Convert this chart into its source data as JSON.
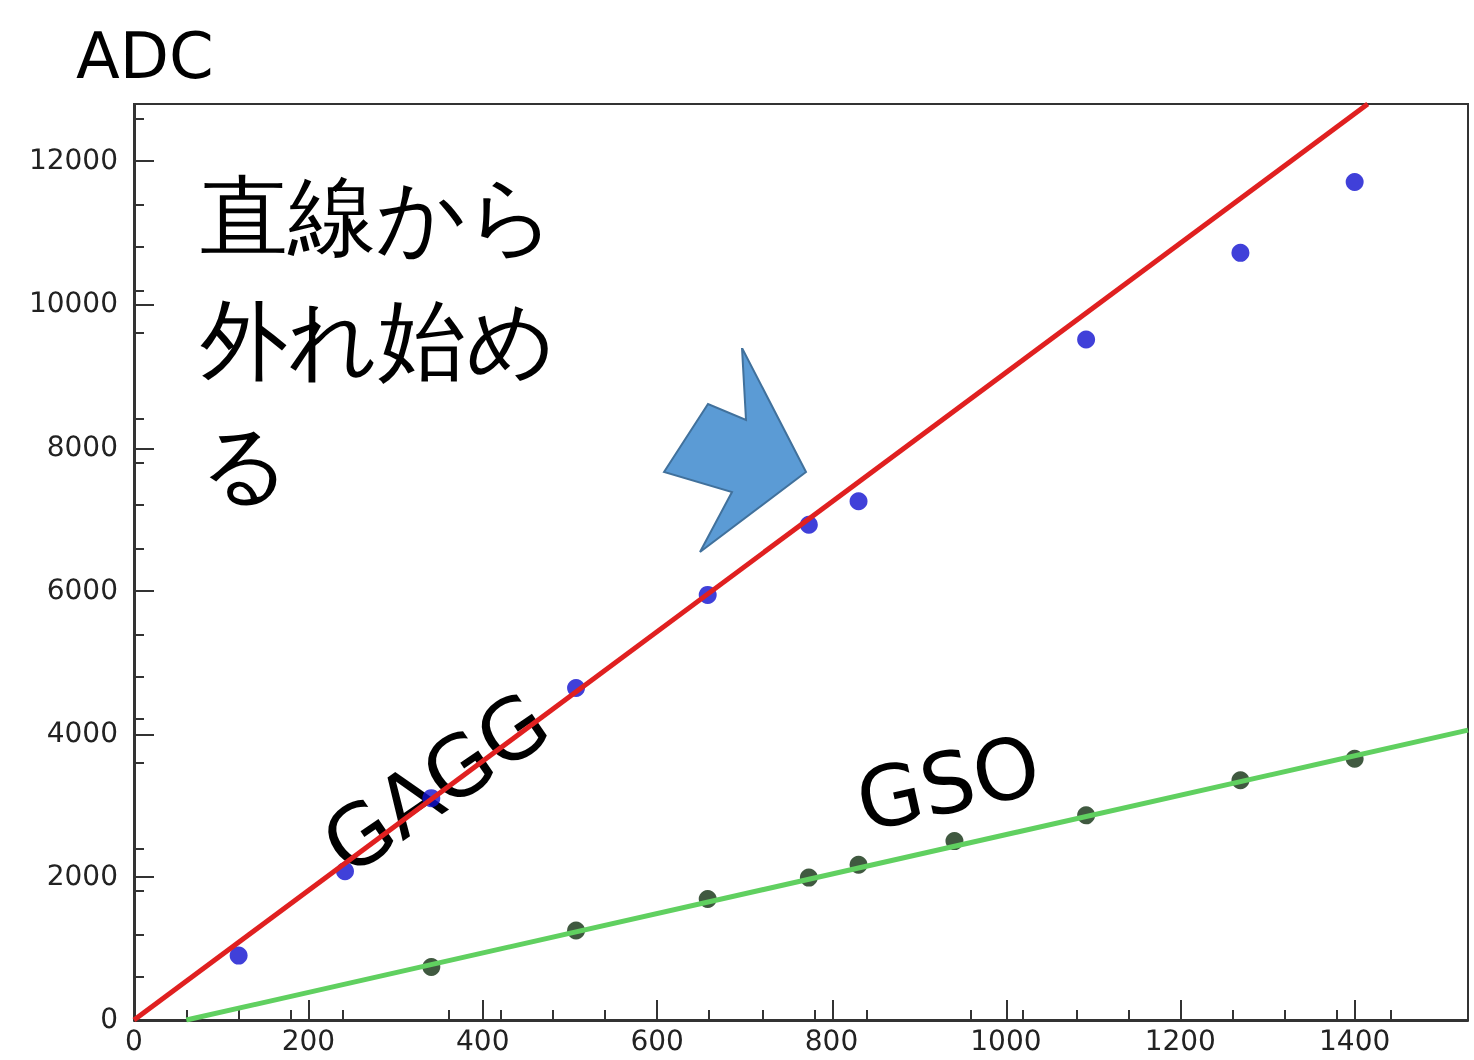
{
  "chart_data": {
    "type": "scatter",
    "ylabel": "ADC",
    "xlim": [
      0,
      1530
    ],
    "xticks": [
      0,
      200,
      400,
      600,
      800,
      1000,
      1200,
      1400
    ],
    "ylim": [
      0,
      12800
    ],
    "yticks": [
      0,
      2000,
      4000,
      6000,
      8000,
      10000,
      12000
    ],
    "grid": false,
    "marker": "circle",
    "annotations": [
      "直線から外れ始める"
    ],
    "series": [
      {
        "name": "GAGG",
        "color": "#1010d0",
        "x": [
          120,
          242,
          341,
          507,
          658,
          774,
          831,
          1092,
          1269,
          1400
        ],
        "values": [
          900,
          2080,
          3100,
          4640,
          5940,
          6920,
          7250,
          9510,
          10720,
          11710
        ]
      },
      {
        "name": "GSO",
        "color": "#103010",
        "x": [
          341,
          507,
          658,
          774,
          831,
          941,
          1092,
          1269,
          1400
        ],
        "values": [
          740,
          1250,
          1690,
          1990,
          2170,
          2500,
          2860,
          3350,
          3650
        ]
      },
      {
        "type": "line",
        "color": "#e02020",
        "x": [
          0,
          1415
        ],
        "values": [
          0,
          12800
        ],
        "marker": "none"
      },
      {
        "type": "line",
        "color": "#60d060",
        "x": [
          60,
          1530
        ],
        "values": [
          0,
          4050
        ],
        "marker": "none"
      }
    ]
  }
}
